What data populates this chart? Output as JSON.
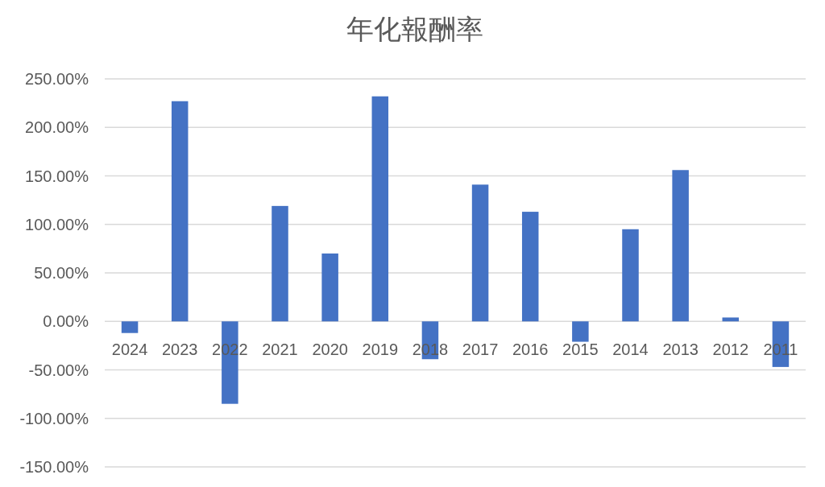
{
  "chart_data": {
    "type": "bar",
    "title": "年化報酬率",
    "categories": [
      "2024",
      "2023",
      "2022",
      "2021",
      "2020",
      "2019",
      "2018",
      "2017",
      "2016",
      "2015",
      "2014",
      "2013",
      "2012",
      "2011"
    ],
    "values": [
      -12,
      227,
      -85,
      119,
      70,
      232,
      -39,
      141,
      113,
      -21,
      95,
      156,
      4,
      -47
    ],
    "color": "#4472c4",
    "ylim": [
      -150,
      250
    ],
    "yticks": [
      {
        "value": -150,
        "label": "-150.00%"
      },
      {
        "value": -100,
        "label": "-100.00%"
      },
      {
        "value": -50,
        "label": "-50.00%"
      },
      {
        "value": 0,
        "label": "0.00%"
      },
      {
        "value": 50,
        "label": "50.00%"
      },
      {
        "value": 100,
        "label": "100.00%"
      },
      {
        "value": 150,
        "label": "150.00%"
      },
      {
        "value": 200,
        "label": "200.00%"
      },
      {
        "value": 250,
        "label": "250.00%"
      }
    ],
    "grid": "y"
  }
}
